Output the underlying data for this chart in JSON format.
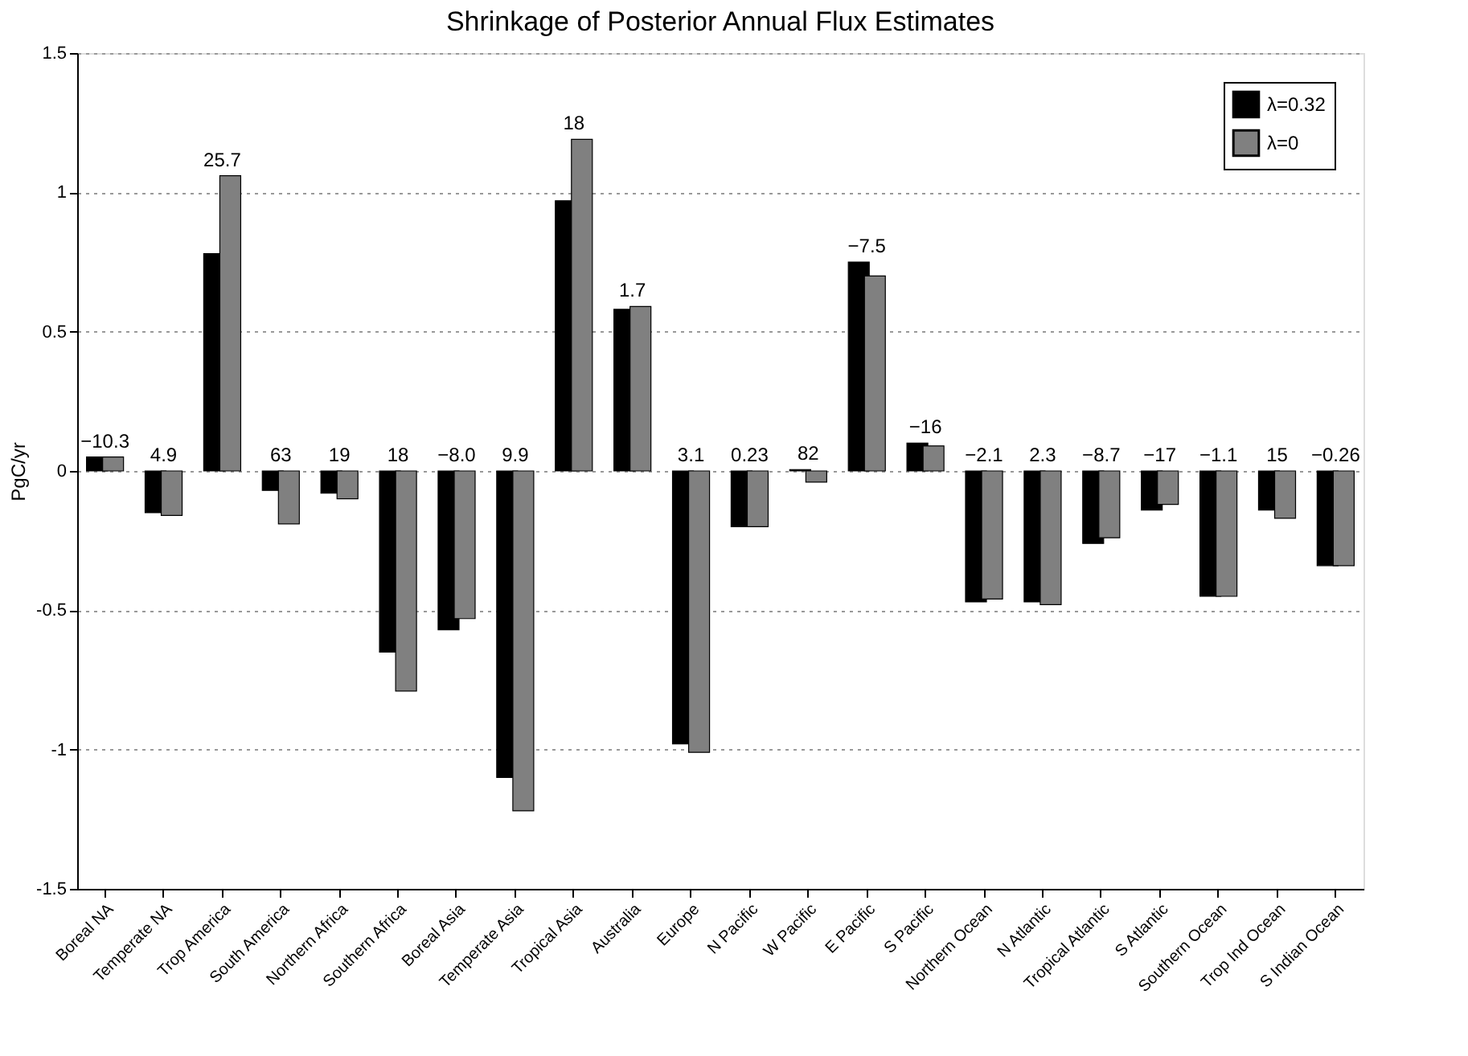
{
  "chart_data": {
    "type": "bar",
    "title": "Shrinkage of Posterior Annual Flux Estimates",
    "ylabel": "PgC/yr",
    "categories": [
      "Boreal NA",
      "Temperate NA",
      "Trop America",
      "South America",
      "Northern Africa",
      "Southern Africa",
      "Boreal Asia",
      "Temperate Asia",
      "Tropical Asia",
      "Australia",
      "Europe",
      "N Pacific",
      "W Pacific",
      "E Pacific",
      "S Pacific",
      "Northern Ocean",
      "N Atlantic",
      "Tropical Atlantic",
      "S Atlantic",
      "Southern Ocean",
      "Trop Ind Ocean",
      "S Indian Ocean"
    ],
    "series": [
      {
        "name": "λ=0.32",
        "color": "#000000",
        "values": [
          0.05,
          -0.15,
          0.78,
          -0.07,
          -0.08,
          -0.65,
          -0.57,
          -1.1,
          0.97,
          0.58,
          -0.98,
          -0.2,
          0.005,
          0.75,
          0.1,
          -0.47,
          -0.47,
          -0.26,
          -0.14,
          -0.45,
          -0.14,
          -0.34
        ]
      },
      {
        "name": "λ=0",
        "color": "#808080",
        "values": [
          0.05,
          -0.16,
          1.06,
          -0.19,
          -0.1,
          -0.79,
          -0.53,
          -1.22,
          1.19,
          0.59,
          -1.01,
          -0.2,
          -0.04,
          0.7,
          0.09,
          -0.46,
          -0.48,
          -0.24,
          -0.12,
          -0.45,
          -0.17,
          -0.34
        ]
      }
    ],
    "annotations": [
      {
        "text": "−10.3",
        "x": "Boreal NA",
        "y": 0.05
      },
      {
        "text": "4.9",
        "x": "Temperate NA",
        "y": 0
      },
      {
        "text": "25.7",
        "x": "Trop America",
        "y": 1.06
      },
      {
        "text": "63",
        "x": "South America",
        "y": 0
      },
      {
        "text": "19",
        "x": "Northern Africa",
        "y": 0
      },
      {
        "text": "18",
        "x": "Southern Africa",
        "y": 0
      },
      {
        "text": "−8.0",
        "x": "Boreal Asia",
        "y": 0
      },
      {
        "text": "9.9",
        "x": "Temperate Asia",
        "y": 0
      },
      {
        "text": "18",
        "x": "Tropical Asia",
        "y": 1.19
      },
      {
        "text": "1.7",
        "x": "Australia",
        "y": 0.59
      },
      {
        "text": "3.1",
        "x": "Europe",
        "y": 0
      },
      {
        "text": "0.23",
        "x": "N Pacific",
        "y": 0
      },
      {
        "text": "82",
        "x": "W Pacific",
        "y": 0.005
      },
      {
        "text": "−7.5",
        "x": "E Pacific",
        "y": 0.75
      },
      {
        "text": "−16",
        "x": "S Pacific",
        "y": 0.1
      },
      {
        "text": "−2.1",
        "x": "Northern Ocean",
        "y": 0
      },
      {
        "text": "2.3",
        "x": "N Atlantic",
        "y": 0
      },
      {
        "text": "−8.7",
        "x": "Tropical Atlantic",
        "y": 0
      },
      {
        "text": "−17",
        "x": "S Atlantic",
        "y": 0
      },
      {
        "text": "−1.1",
        "x": "Southern Ocean",
        "y": 0
      },
      {
        "text": "15",
        "x": "Trop Ind Ocean",
        "y": 0
      },
      {
        "text": "−0.26",
        "x": "S Indian Ocean",
        "y": 0
      }
    ],
    "ylim": [
      -1.5,
      1.5
    ],
    "yticks": [
      -1.5,
      -1,
      -0.5,
      0,
      0.5,
      1,
      1.5
    ],
    "grid": "y",
    "legend": "top right"
  }
}
